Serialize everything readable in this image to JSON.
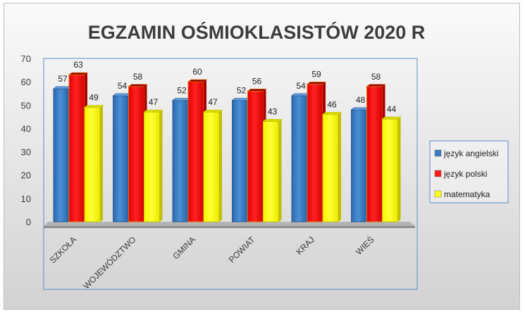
{
  "chart_data": {
    "type": "bar",
    "title": "EGZAMIN OŚMIOKLASISTÓW 2020 R",
    "categories": [
      "SZKOŁA",
      "WOJEWÓDZTWO",
      "GMINA",
      "POWIAT",
      "KRAJ",
      "WIEŚ"
    ],
    "series": [
      {
        "name": "język angielski",
        "values": [
          57,
          54,
          52,
          52,
          54,
          48
        ],
        "color": "#3b7dc4"
      },
      {
        "name": "język polski",
        "values": [
          63,
          58,
          60,
          56,
          59,
          58
        ],
        "color": "#ff1a1a"
      },
      {
        "name": "matematyka",
        "values": [
          49,
          47,
          47,
          43,
          46,
          44
        ],
        "color": "#ffff19"
      }
    ],
    "y_ticks": [
      "0",
      "10",
      "20",
      "30",
      "40",
      "50",
      "60",
      "70"
    ],
    "ylim": [
      0,
      70
    ],
    "xlabel": "",
    "ylabel": "",
    "legend_position": "right",
    "grid": false
  }
}
